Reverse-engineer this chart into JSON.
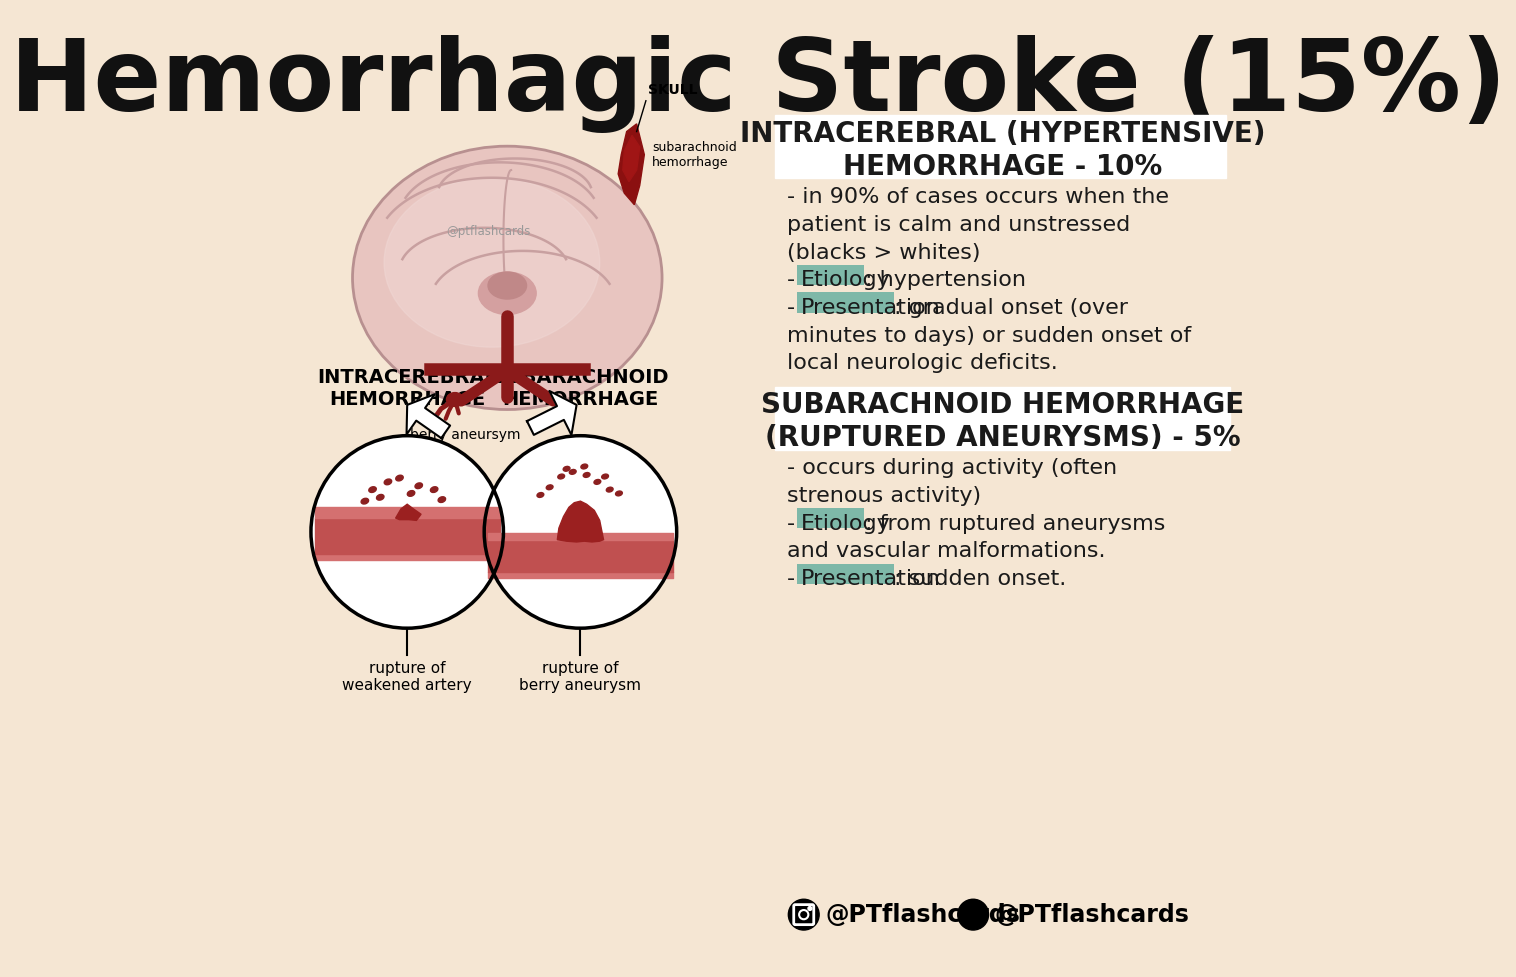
{
  "bg_color": "#f5e6d3",
  "title": "Hemorrhagic Stroke (15%)",
  "title_fontsize": 72,
  "title_color": "#111111",
  "highlight_color": "#7eb8a8",
  "text_color": "#1a1a1a",
  "body_fontsize": 16,
  "brain_color": "#e8c5c0",
  "brain_inner": "#dbb0b0",
  "vessel_color": "#8b1a1a",
  "vessel_mid": "#b84040",
  "vessel_light": "#d47070",
  "skull_label": "SKULL",
  "sub_hem_label": "subarachnoid\nhemorrhage",
  "ptflash_label": "@ptflashcards",
  "berry_label": "berry aneursym",
  "label_left1": "INTRACEREBRAL\nHEMORRHAGE",
  "label_left2": "SUBARACHNOID\nHEMORRHAGE",
  "caption_left1": "rupture of\nweakened artery",
  "caption_left2": "rupture of\nberry aneurysm",
  "s1_title_line1": "INTRACEREBRAL (HYPERTENSIVE)",
  "s1_title_line2": "HEMORRHAGE - 10%",
  "s2_title_line1": "SUBARACHNOID HEMORRHAGE",
  "s2_title_line2": "(RUPTURED ANEURYSMS) - 5%",
  "s1_lines": [
    "- in 90% of cases occurs when the",
    "patient is calm and unstressed",
    "(blacks > whites)",
    "HIGHLIGHT|Etiology|: hypertension",
    "HIGHLIGHT|Presentation|: gradual onset (over",
    "minutes to days) or sudden onset of",
    "local neurologic deficits."
  ],
  "s2_lines": [
    "- occurs during activity (often",
    "strenous activity)",
    "HIGHLIGHT|Etiology|: from ruptured aneurysms",
    "and vascular malformations.",
    "HIGHLIGHT|Presentation|: sudden onset."
  ],
  "footer_ig": "@PTflashcards",
  "footer_tw": "@PTflashcards"
}
